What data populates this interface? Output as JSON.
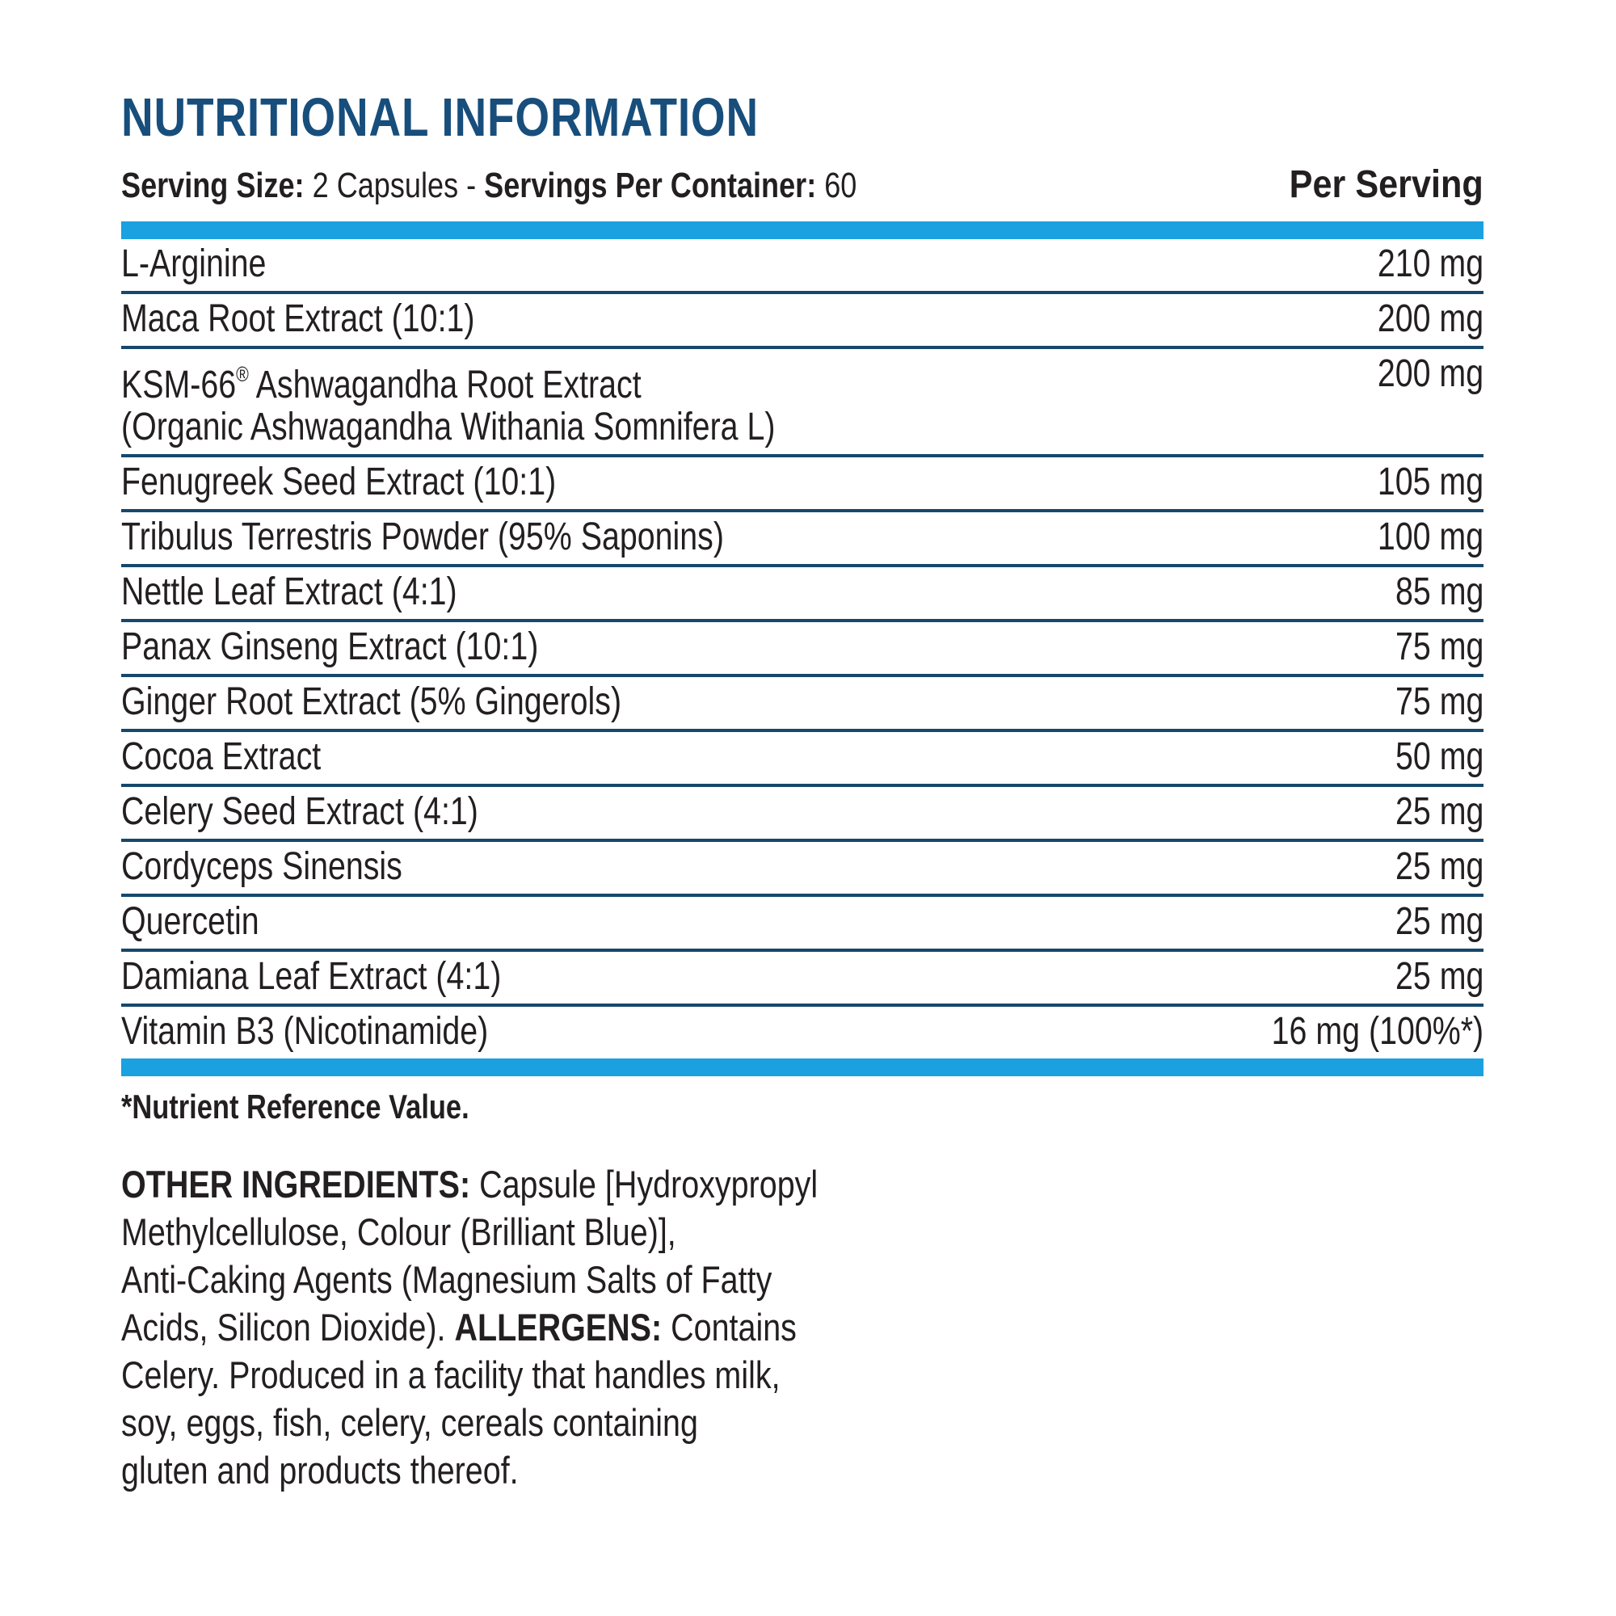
{
  "colors": {
    "title_blue": "#174E7C",
    "divider_blue": "#16486B",
    "accent_cyan": "#1BA0E0",
    "text_ink": "#231F20"
  },
  "header": {
    "title": "NUTRITIONAL INFORMATION",
    "serving_size_label": "Serving Size:",
    "serving_size_value": " 2 Capsules ",
    "dash": "- ",
    "servings_per_container_label": "Servings Per Container:",
    "servings_per_container_value": " 60",
    "per_serving": "Per Serving"
  },
  "table": {
    "rows": [
      {
        "name": "L-Arginine",
        "value": "210 mg"
      },
      {
        "name": "Maca Root Extract (10:1)",
        "value": "200 mg"
      },
      {
        "name_prefix": "KSM-66",
        "reg_mark": "®",
        "name_suffix": " Ashwagandha Root Extract",
        "subname": "(Organic Ashwagandha Withania Somnifera L)",
        "value": "200 mg"
      },
      {
        "name": "Fenugreek Seed Extract (10:1)",
        "value": "105 mg"
      },
      {
        "name": "Tribulus Terrestris Powder (95% Saponins)",
        "value": "100 mg"
      },
      {
        "name": "Nettle Leaf Extract (4:1)",
        "value": "85 mg"
      },
      {
        "name": "Panax Ginseng Extract (10:1)",
        "value": "75 mg"
      },
      {
        "name": "Ginger Root Extract (5% Gingerols)",
        "value": "75 mg"
      },
      {
        "name": "Cocoa Extract",
        "value": "50 mg"
      },
      {
        "name": "Celery Seed Extract (4:1)",
        "value": "25 mg"
      },
      {
        "name": "Cordyceps Sinensis",
        "value": "25 mg"
      },
      {
        "name": "Quercetin",
        "value": "25 mg"
      },
      {
        "name": "Damiana Leaf Extract (4:1)",
        "value": "25 mg"
      },
      {
        "name": "Vitamin B3 (Nicotinamide)",
        "value": "16 mg (100%*)"
      }
    ]
  },
  "footnote": "*Nutrient Reference Value.",
  "para": {
    "line1_bold": "OTHER INGREDIENTS:",
    "line1_rest": " Capsule [Hydroxypropyl",
    "line2": "Methylcellulose, Colour (Brilliant Blue)],",
    "line3": "Anti-Caking Agents (Magnesium Salts of Fatty",
    "line4_pre": "Acids, Silicon Dioxide). ",
    "line4_bold": "ALLERGENS:",
    "line4_rest": " Contains",
    "line5": "Celery. Produced in a facility that handles milk,",
    "line6": "soy, eggs, fish, celery, cereals containing",
    "line7": "gluten and products thereof."
  }
}
